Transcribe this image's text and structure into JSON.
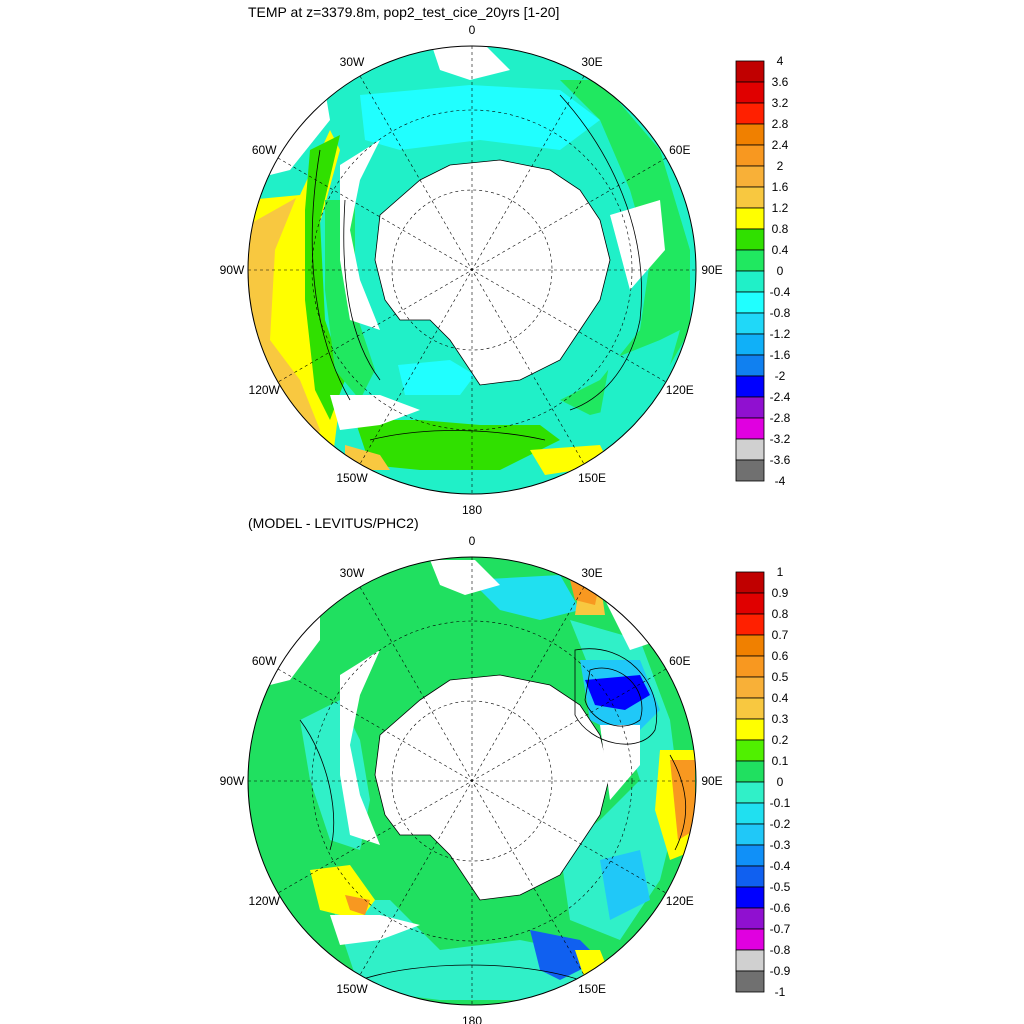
{
  "top_panel": {
    "title": "TEMP at z=3379.8m, pop2_test_cice_20yrs [1-20]",
    "lon_labels": [
      "0",
      "30E",
      "60E",
      "90E",
      "120E",
      "150E",
      "180",
      "150W",
      "120W",
      "90W",
      "60W",
      "30W"
    ],
    "colorbar": {
      "labels": [
        "4",
        "3.6",
        "3.2",
        "2.8",
        "2.4",
        "2",
        "1.6",
        "1.2",
        "0.8",
        "0.4",
        "0",
        "-0.4",
        "-0.8",
        "-1.2",
        "-1.6",
        "-2",
        "-2.4",
        "-2.8",
        "-3.2",
        "-3.6",
        "-4"
      ],
      "colors": [
        "#c00000",
        "#e00000",
        "#ff2000",
        "#f08000",
        "#f89820",
        "#f8b038",
        "#f8c840",
        "#ffff00",
        "#30e000",
        "#20e860",
        "#20f0c8",
        "#20ffff",
        "#20d8f8",
        "#10b0f8",
        "#1080f0",
        "#0000ff",
        "#9010d0",
        "#e000e0",
        "#d0d0d0",
        "#707070"
      ]
    }
  },
  "bottom_panel": {
    "title": "(MODEL - LEVITUS/PHC2)",
    "lon_labels": [
      "0",
      "30E",
      "60E",
      "90E",
      "120E",
      "150E",
      "180",
      "150W",
      "120W",
      "90W",
      "60W",
      "30W"
    ],
    "colorbar": {
      "labels": [
        "1",
        "0.9",
        "0.8",
        "0.7",
        "0.6",
        "0.5",
        "0.4",
        "0.3",
        "0.2",
        "0.1",
        "0",
        "-0.1",
        "-0.2",
        "-0.3",
        "-0.4",
        "-0.5",
        "-0.6",
        "-0.7",
        "-0.8",
        "-0.9",
        "-1"
      ],
      "colors": [
        "#c00000",
        "#e00000",
        "#ff2000",
        "#f08000",
        "#f89820",
        "#f8b038",
        "#f8c840",
        "#ffff00",
        "#50f000",
        "#20e060",
        "#30f0c8",
        "#20e0f0",
        "#20c8f8",
        "#1090f8",
        "#1060f0",
        "#0000ff",
        "#9010d0",
        "#e000e0",
        "#d0d0d0",
        "#707070"
      ]
    }
  }
}
